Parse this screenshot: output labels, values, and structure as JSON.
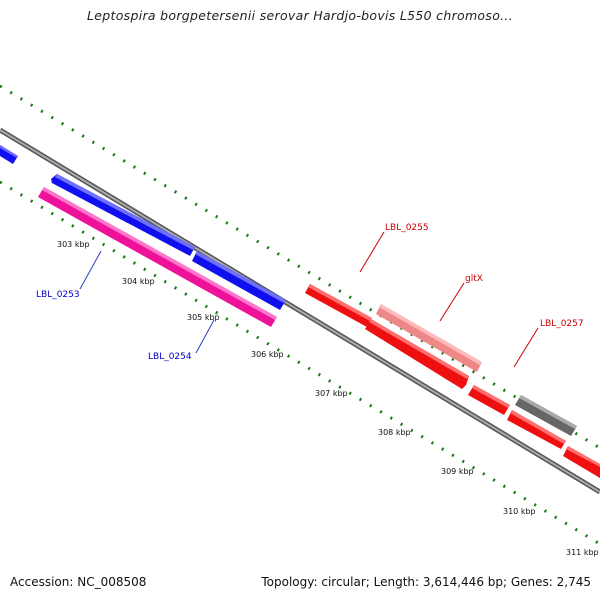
{
  "title": "Leptospira borgpetersenii serovar Hardjo-bovis L550 chromoso...",
  "footer": {
    "accession": "Accession: NC_008508",
    "summary": "Topology: circular; Length: 3,614,446 bp; Genes: 2,745"
  },
  "ticks": [
    "303 kbp",
    "304 kbp",
    "305 kbp",
    "306 kbp",
    "307 kbp",
    "308 kbp",
    "309 kbp",
    "310 kbp",
    "311 kbp"
  ],
  "genes": [
    {
      "label": "LBL_0253",
      "color": "#0000cc"
    },
    {
      "label": "LBL_0254",
      "color": "#0000cc"
    },
    {
      "label": "LBL_0255",
      "color": "#cc0000"
    },
    {
      "label": "gltX",
      "color": "#cc0000"
    },
    {
      "label": "LBL_0257",
      "color": "#cc0000"
    }
  ],
  "colors": {
    "forward_cds": "#1010ee",
    "reverse_cds": "#ee1010",
    "rrna_magenta": "#ee1199",
    "trna_salmon": "#ee8888",
    "other_gray": "#666666",
    "backbone": "#888888",
    "gc_tick": "#1a7a1a"
  }
}
